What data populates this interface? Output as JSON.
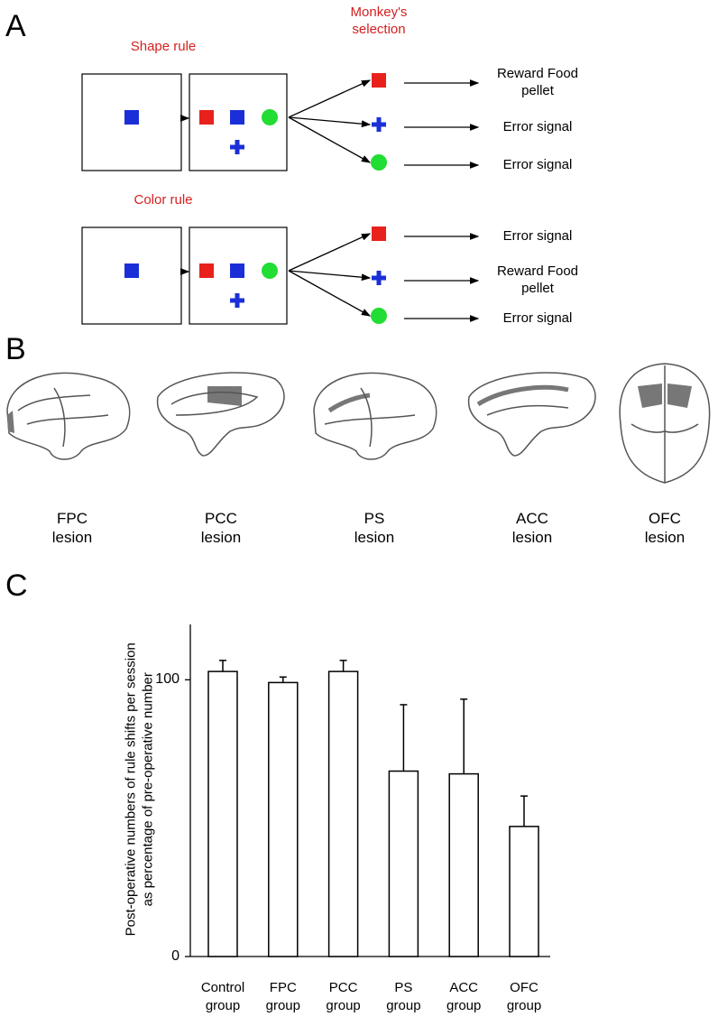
{
  "panel_labels": [
    "A",
    "B",
    "C"
  ],
  "panel_a": {
    "selection_heading": "Monkey's selection",
    "trials": [
      {
        "rule": "Shape rule",
        "outcomes": [
          "Reward Food pellet",
          "Error signal",
          "Error signal"
        ]
      },
      {
        "rule": "Color rule",
        "outcomes": [
          "Error signal",
          "Reward Food pellet",
          "Error signal"
        ]
      }
    ]
  },
  "panel_b": {
    "lesions": [
      "FPC lesion",
      "PCC lesion",
      "PS lesion",
      "ACC lesion",
      "OFC lesion"
    ]
  },
  "chart_data": {
    "type": "bar",
    "y_label": "Post-operative numbers of rule shifts per session as percentage of pre-operative number",
    "categories": [
      "Control group",
      "FPC group",
      "PCC group",
      "PS group",
      "ACC group",
      "OFC group"
    ],
    "values": [
      103,
      99,
      103,
      67,
      66,
      47
    ],
    "errors": [
      4,
      2,
      4,
      24,
      27,
      11
    ],
    "color": "#ffffff",
    "ylim": [
      0,
      120
    ],
    "yticks": [
      0,
      100
    ]
  }
}
